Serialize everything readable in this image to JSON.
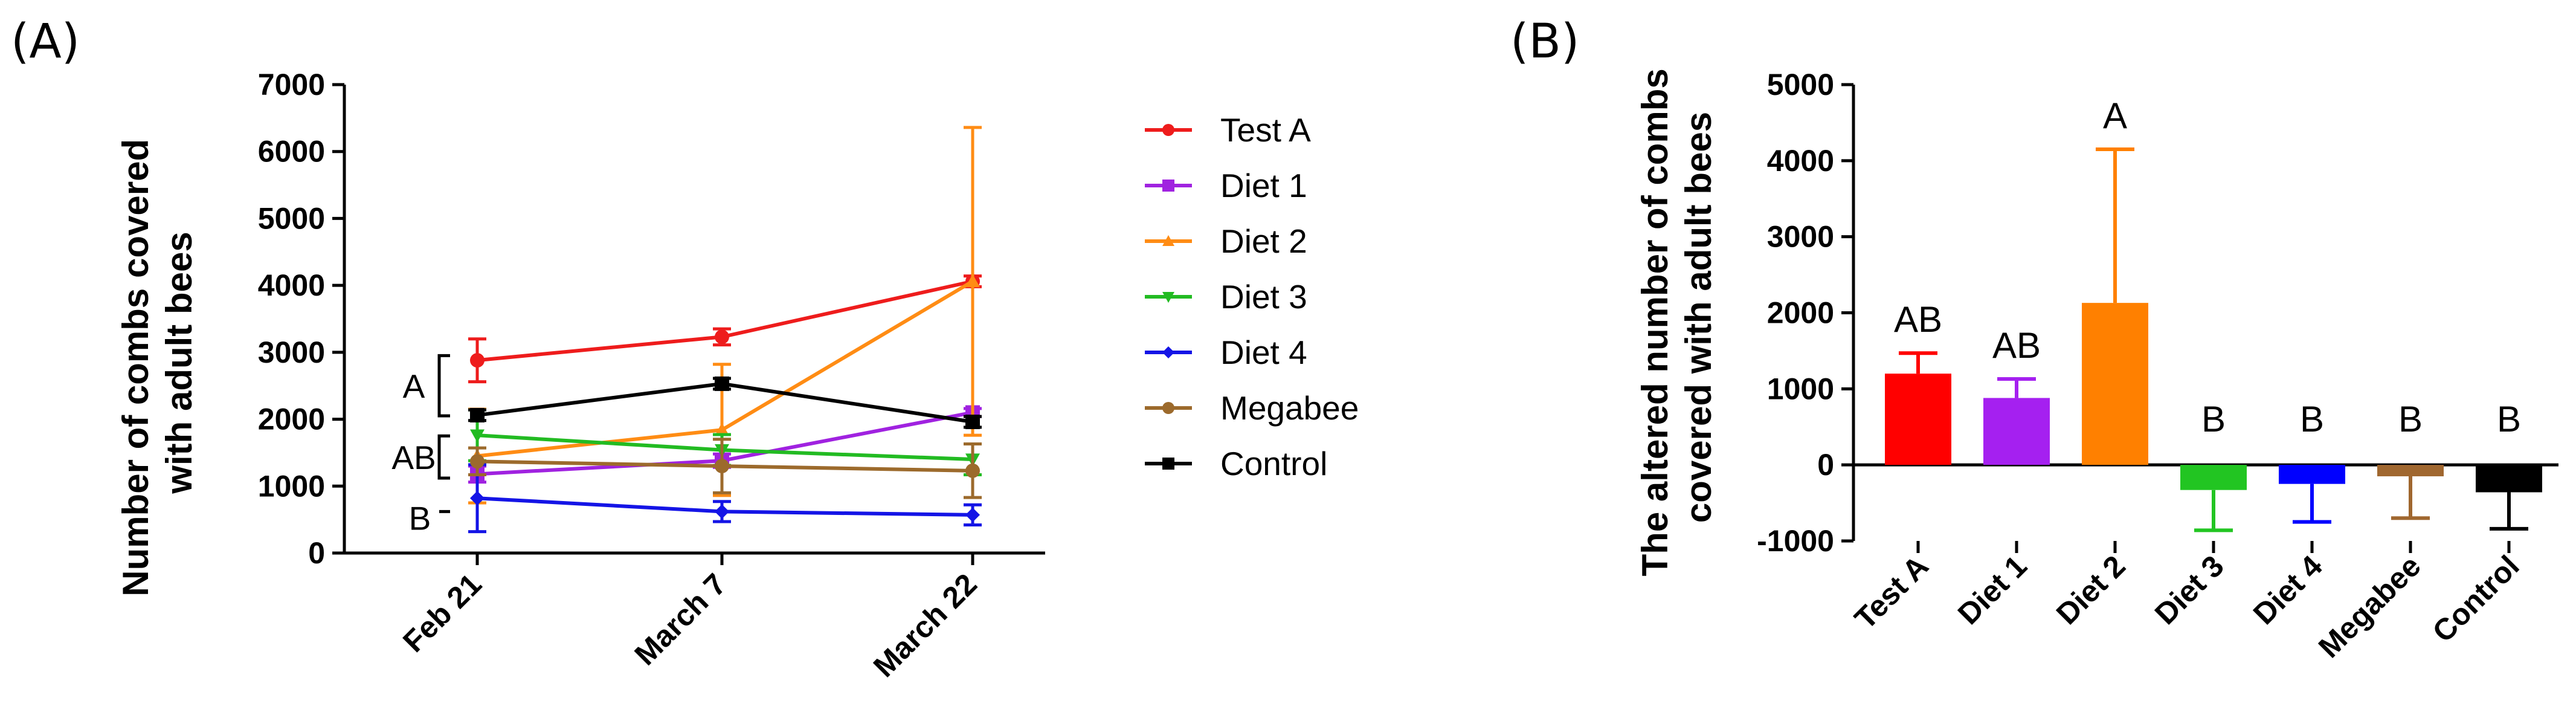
{
  "panels": {
    "a": {
      "label": "(A)"
    },
    "b": {
      "label": "(B)"
    }
  },
  "chart_data": [
    {
      "type": "line",
      "title": "",
      "xlabel": "",
      "ylabel_lines": [
        "Number of combs covered",
        "with adult bees"
      ],
      "ylim": [
        0,
        7000
      ],
      "yticks": [
        0,
        1000,
        2000,
        3000,
        4000,
        5000,
        6000,
        7000
      ],
      "categories": [
        "Feb 21",
        "March 7",
        "March 22"
      ],
      "series": [
        {
          "name": "Test A",
          "color": "#ee1c1c",
          "marker": "circle",
          "values": [
            2880,
            3230,
            4060
          ],
          "err": [
            320,
            120,
            80
          ]
        },
        {
          "name": "Diet 1",
          "color": "#a022e0",
          "marker": "square",
          "values": [
            1180,
            1380,
            2100
          ],
          "err": [
            120,
            100,
            60
          ]
        },
        {
          "name": "Diet 2",
          "color": "#ff8c14",
          "marker": "triangle-up",
          "values": [
            1450,
            1840,
            4060
          ],
          "err": [
            700,
            980,
            2300
          ]
        },
        {
          "name": "Diet 3",
          "color": "#22bb22",
          "marker": "triangle-down",
          "values": [
            1760,
            1540,
            1400
          ],
          "err": [
            380,
            230,
            230
          ]
        },
        {
          "name": "Diet 4",
          "color": "#1414e6",
          "marker": "diamond",
          "values": [
            820,
            620,
            570
          ],
          "err": [
            500,
            150,
            150
          ]
        },
        {
          "name": "Megabee",
          "color": "#9c6a2c",
          "marker": "circle",
          "values": [
            1370,
            1300,
            1230
          ],
          "err": [
            200,
            400,
            400
          ]
        },
        {
          "name": "Control",
          "color": "#000000",
          "marker": "square",
          "values": [
            2060,
            2530,
            1960
          ],
          "err": [
            80,
            80,
            80
          ]
        }
      ],
      "annotations": [
        {
          "text": "A",
          "bracket": [
            2050,
            2950
          ]
        },
        {
          "text": "AB",
          "bracket": [
            1120,
            1750
          ]
        },
        {
          "text": "B",
          "bracket": [
            620,
            620
          ]
        }
      ]
    },
    {
      "type": "bar",
      "title": "",
      "xlabel": "",
      "ylabel_lines": [
        "The altered number of combs",
        "covered with adult bees"
      ],
      "ylim": [
        -1000,
        5000
      ],
      "yticks": [
        -1000,
        0,
        1000,
        2000,
        3000,
        4000,
        5000
      ],
      "categories": [
        "Test A",
        "Diet 1",
        "Diet 2",
        "Diet 3",
        "Diet 4",
        "Megabee",
        "Control"
      ],
      "values": [
        1200,
        880,
        2130,
        -330,
        -250,
        -150,
        -360
      ],
      "err": [
        270,
        250,
        2020,
        530,
        500,
        550,
        480
      ],
      "colors": [
        "#ff0000",
        "#a520f0",
        "#ff8000",
        "#22c522",
        "#0000ff",
        "#a0672f",
        "#000000"
      ],
      "labels": [
        "AB",
        "AB",
        "A",
        "B",
        "B",
        "B",
        "B"
      ]
    }
  ]
}
